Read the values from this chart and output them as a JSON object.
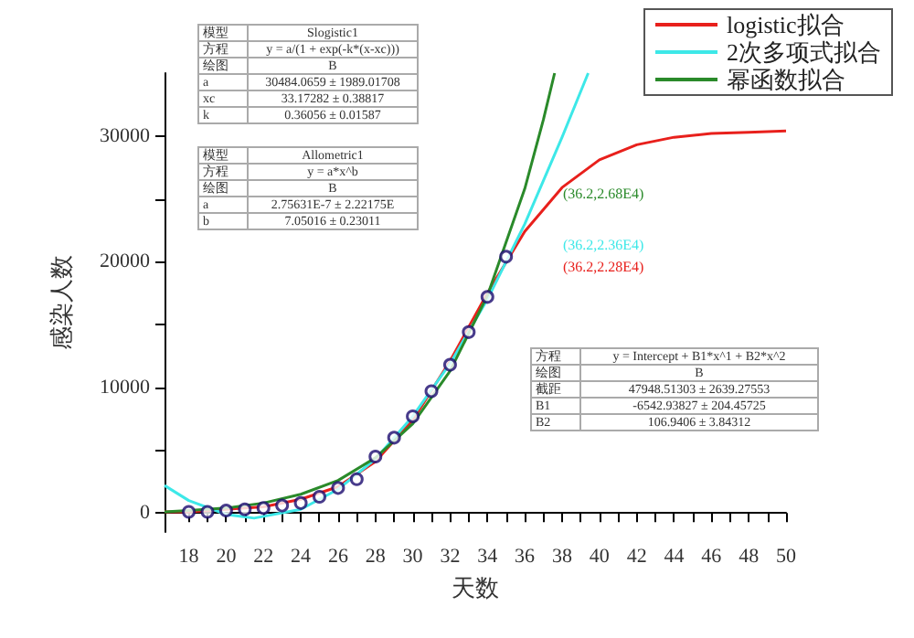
{
  "chart_data": {
    "type": "line",
    "xlabel": "天数",
    "ylabel": "感染人数",
    "legend": "top right",
    "xlim": [
      16.7,
      50
    ],
    "xticks": [
      18,
      {
        "value": 19,
        "label": null
      },
      20,
      {
        "value": 21,
        "label": null
      },
      22,
      {
        "value": 23,
        "label": null
      },
      24,
      {
        "value": 25,
        "label": null
      },
      26,
      {
        "value": 27,
        "label": null
      },
      28,
      {
        "value": 29,
        "label": null
      },
      30,
      {
        "value": 31,
        "label": null
      },
      32,
      {
        "value": 33,
        "label": null
      },
      34,
      {
        "value": 35,
        "label": null
      },
      36,
      {
        "value": 37,
        "label": null
      },
      38,
      {
        "value": 39,
        "label": null
      },
      40,
      {
        "value": 41,
        "label": null
      },
      42,
      {
        "value": 43,
        "label": null
      },
      44,
      {
        "value": 45,
        "label": null
      },
      46,
      {
        "value": 47,
        "label": null
      },
      48,
      {
        "value": 49,
        "label": null
      },
      50
    ],
    "ylim": [
      -1500,
      35000
    ],
    "yticks": [
      0,
      {
        "value": 5000,
        "label": null
      },
      10000,
      {
        "value": 15000,
        "label": null
      },
      20000,
      {
        "value": 25000,
        "label": null
      },
      30000
    ],
    "series": [
      {
        "name": "logistic拟合",
        "color": "#e8201c",
        "marker": "none",
        "x": [
          16.7,
          18,
          20,
          22,
          24,
          26,
          28,
          30,
          32,
          33,
          34,
          36,
          38,
          40,
          42,
          44,
          46,
          48,
          50
        ],
        "values": [
          100,
          100,
          300,
          500,
          1100,
          2100,
          4100,
          7400,
          12100,
          14800,
          17500,
          22400,
          25900,
          28100,
          29300,
          29900,
          30200,
          30300,
          30400
        ]
      },
      {
        "name": "2次多项式拟合",
        "color": "#3de8e8",
        "marker": "none",
        "x": [
          16.7,
          18,
          20,
          21.5,
          24,
          26,
          28,
          30,
          32,
          34,
          36,
          38,
          39.4
        ],
        "values": [
          2200,
          1000,
          -100,
          -400,
          300,
          1900,
          4300,
          7700,
          11900,
          17000,
          23000,
          29900,
          35000
        ]
      },
      {
        "name": "幂函数拟合",
        "color": "#2a8a2a",
        "marker": "none",
        "x": [
          16.7,
          18,
          20,
          22,
          24,
          26,
          28,
          30,
          32,
          34,
          36,
          37,
          37.6
        ],
        "values": [
          100,
          200,
          400,
          800,
          1500,
          2600,
          4400,
          7100,
          11300,
          17300,
          25800,
          31300,
          35000
        ]
      },
      {
        "color": "#1a0a6e",
        "type": "scatter",
        "marker": "circle",
        "x": [
          18,
          19,
          20,
          21,
          22,
          23,
          24,
          25,
          26,
          27,
          28,
          29,
          30,
          31,
          32,
          33,
          34,
          35
        ],
        "values": [
          100,
          100,
          200,
          300,
          400,
          600,
          800,
          1300,
          2000,
          2700,
          4500,
          6000,
          7700,
          9700,
          11800,
          14400,
          17200,
          20400
        ]
      }
    ],
    "annotations": [
      "模型",
      "Slogistic1",
      "方程",
      "y = a/(1 + exp(-k*(x-xc)))",
      "绘图",
      "B",
      "a",
      "30484.0659 ± 1989.01708",
      "xc",
      "33.17282 ± 0.38817",
      "k",
      "0.36056 ± 0.01587",
      "模型",
      "Allometric1",
      "方程",
      "y = a*x^b",
      "绘图",
      "B",
      "a",
      "2.75631E-7 ± 2.22175E",
      "b",
      "7.05016 ± 0.23011",
      "方程",
      "y = Intercept + B1*x^1 + B2*x^2",
      "绘图",
      "B",
      "截距",
      "47948.51303 ± 2639.27553",
      "B1",
      "-6542.93827 ± 204.45725",
      "B2",
      "106.9406 ± 3.84312",
      "(36.2,2.28E4)",
      "(36.2,2.36E4)",
      "(36.2,2.68E4)"
    ]
  }
}
